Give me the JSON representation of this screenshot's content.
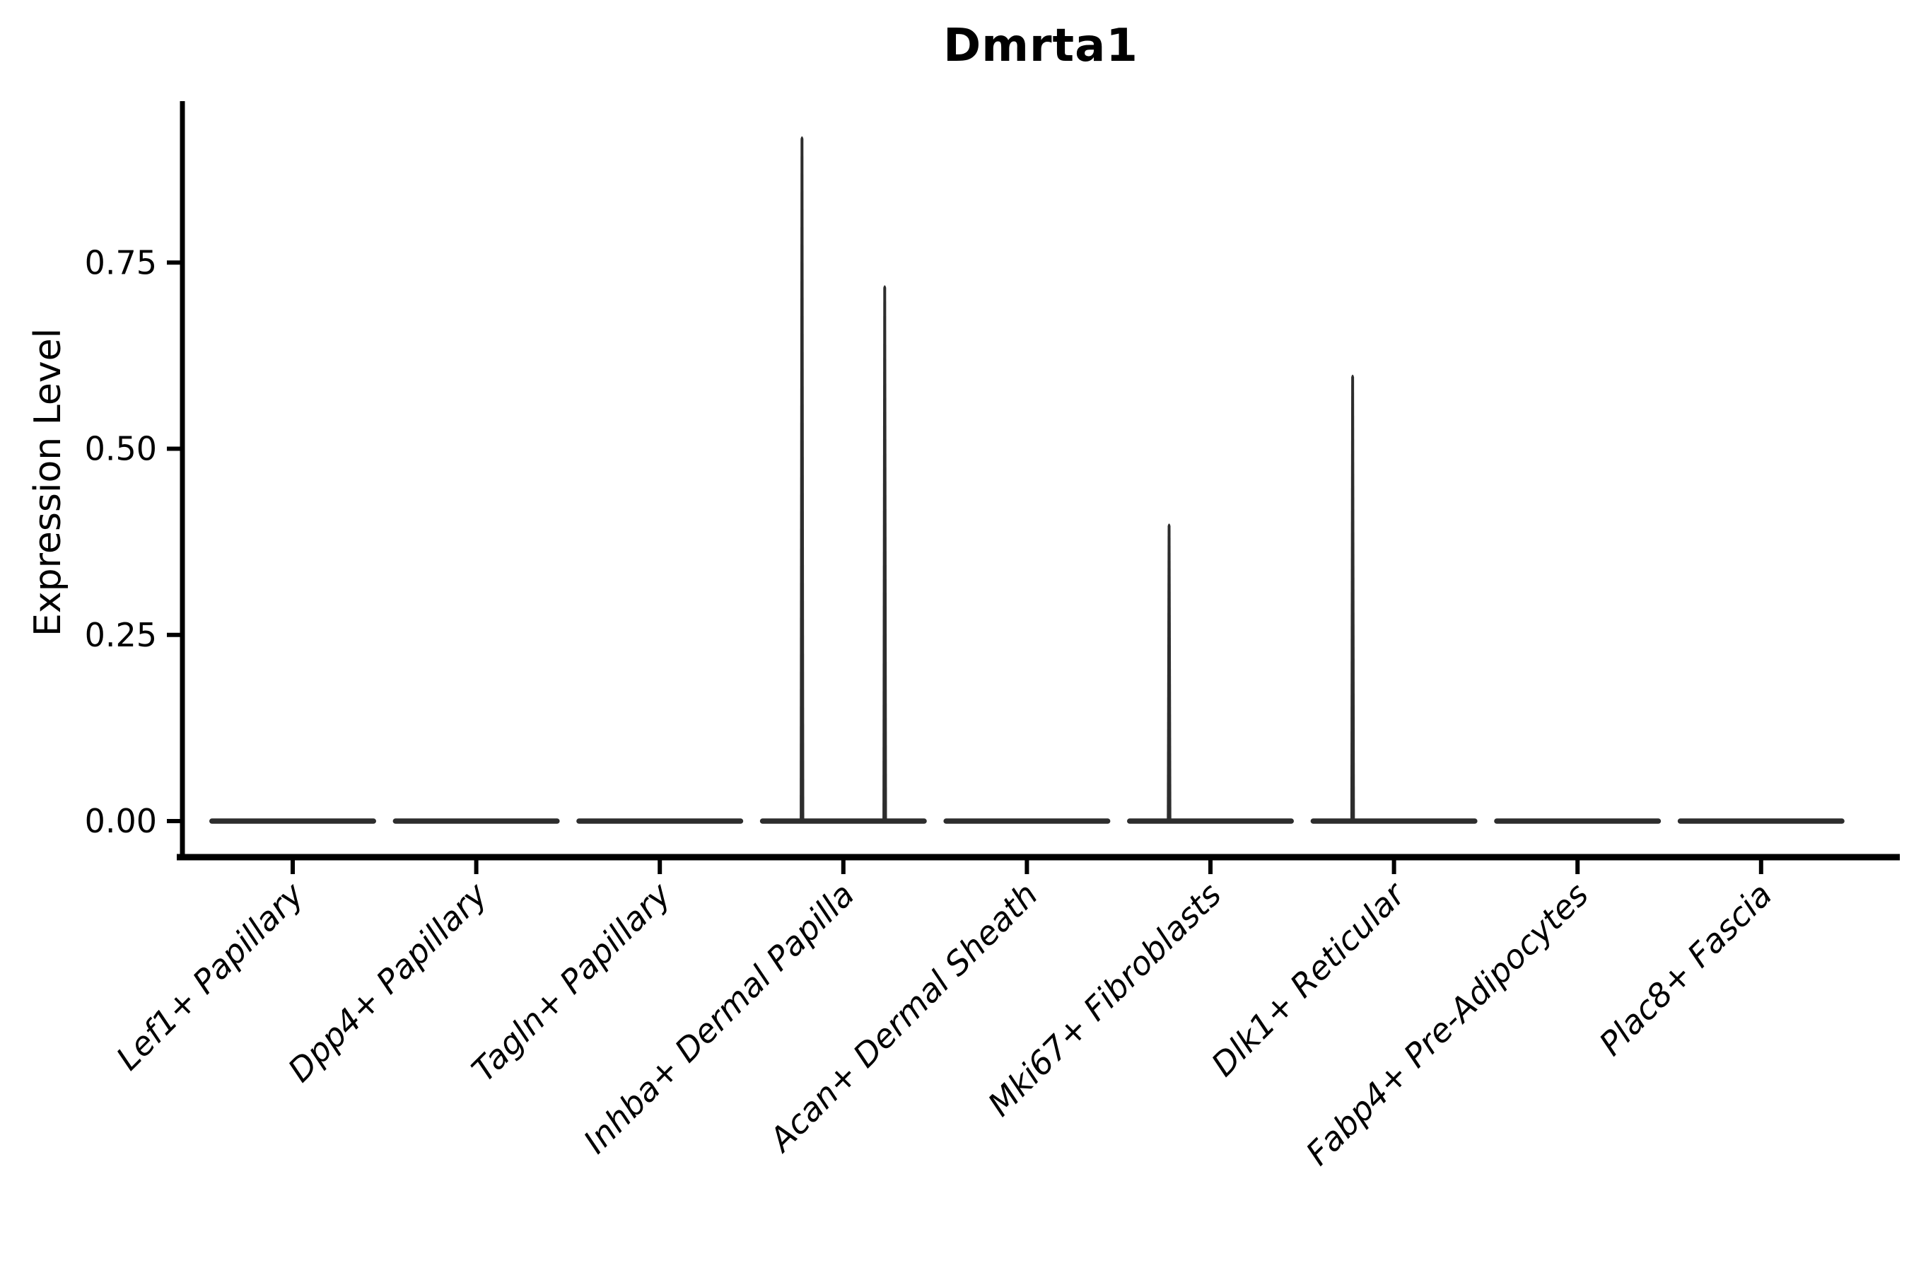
{
  "figure": {
    "background": "#ffffff"
  },
  "chart_data": {
    "type": "violin",
    "title": "Dmrta1",
    "xlabel": "",
    "ylabel": "Expression Level",
    "categories": [
      "Lef1+ Papillary",
      "Dpp4+ Papillary",
      "Tagln+ Papillary",
      "Inhba+ Dermal Papilla",
      "Acan+ Dermal Sheath",
      "Mki67+ Fibroblasts",
      "Dlk1+ Reticular",
      "Fabp4+ Pre-Adipocytes",
      "Plac8+ Fascia"
    ],
    "ytick_labels": [
      "0.00",
      "0.25",
      "0.50",
      "0.75"
    ],
    "ytick_values": [
      0.0,
      0.25,
      0.5,
      0.75
    ],
    "ylim": [
      0.0,
      0.97
    ],
    "grid": false,
    "legend_position": "none",
    "violins_per_category": 2,
    "series": [
      {
        "name": "left-violin",
        "max_values": [
          0,
          0,
          0,
          0.92,
          0,
          0.4,
          0.6,
          0,
          0
        ]
      },
      {
        "name": "right-violin",
        "max_values": [
          0,
          0,
          0,
          0.72,
          0,
          0,
          0,
          0,
          0
        ]
      }
    ],
    "shape_note": "each violin is flat at y=0 (mass at zero) with a thin vertical density spike rising to its max value",
    "colors": {
      "violin_fill": "#2d2d2d",
      "axis": "#000000",
      "background": "#ffffff"
    }
  }
}
